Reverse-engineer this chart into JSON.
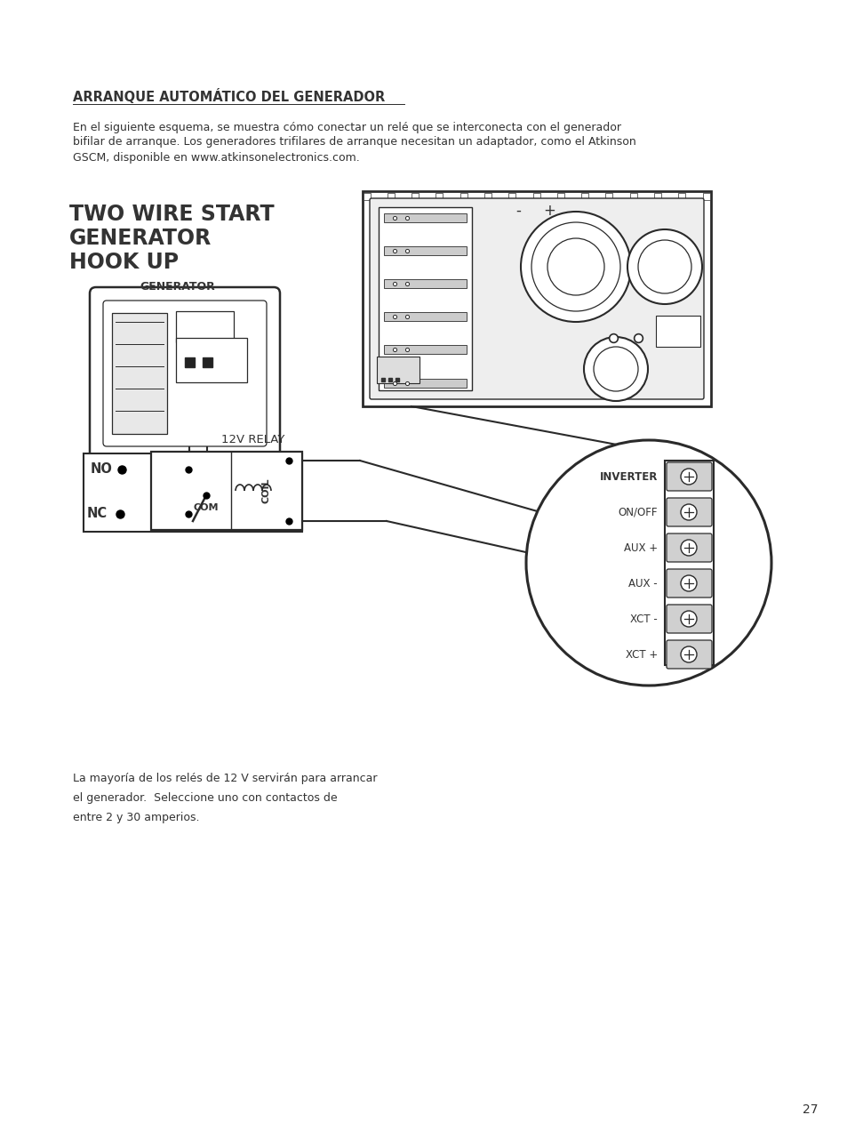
{
  "bg_color": "#ffffff",
  "page_number": "27",
  "title": "ARRANQUE AUTOMÁTICO DEL GENERADOR",
  "body1": "En el siguiente esquema, se muestra cómo conectar un relé que se interconecta con el generador",
  "body2": "bifilar de arranque. Los generadores trifilares de arranque necesitan un adaptador, como el Atkinson",
  "body3": "GSCM, disponible en www.atkinsonelectronics.com.",
  "diag_t1": "TWO WIRE START",
  "diag_t2": "GENERATOR",
  "diag_t3": "HOOK UP",
  "lbl_generator": "GENERATOR",
  "lbl_relay": "12V RELAY",
  "lbl_no": "NO",
  "lbl_nc": "NC",
  "lbl_com": "COM",
  "lbl_coil": "COIL",
  "lbl_inverter": "INVERTER",
  "lbl_onoff": "ON/OFF",
  "lbl_aux_plus": "AUX +",
  "lbl_aux_minus": "AUX -",
  "lbl_xct_minus": "XCT -",
  "lbl_xct_plus": "XCT +",
  "bottom1": "La mayoría de los relés de 12 V servirán para arrancar",
  "bottom2": "el generador.  Seleccione uno con contactos de",
  "bottom3": "entre 2 y 30 amperios.",
  "lc": "#2a2a2a",
  "tc": "#333333",
  "lw": 1.5
}
